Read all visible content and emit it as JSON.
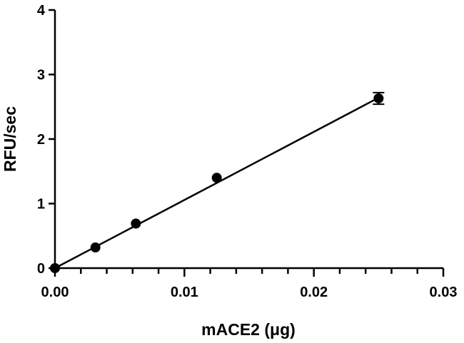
{
  "chart_data": {
    "type": "scatter",
    "title": "",
    "xlabel": "mACE2 (μg)",
    "ylabel": "RFU/sec",
    "xlim": [
      0,
      0.03
    ],
    "ylim": [
      0,
      4
    ],
    "x_ticks": [
      0.0,
      0.01,
      0.02,
      0.03
    ],
    "x_tick_labels": [
      "0.00",
      "0.01",
      "0.02",
      "0.03"
    ],
    "x_minor_ticks_per_interval": 4,
    "y_ticks": [
      0,
      1,
      2,
      3,
      4
    ],
    "y_tick_labels": [
      "0",
      "1",
      "2",
      "3",
      "4"
    ],
    "grid": false,
    "legend": "none",
    "series": [
      {
        "x": [
          0.0,
          0.003125,
          0.00625,
          0.0125,
          0.025
        ],
        "y": [
          0.0,
          0.32,
          0.69,
          1.4,
          2.63
        ],
        "y_err": [
          0,
          0,
          0,
          0,
          0.09
        ]
      }
    ],
    "fit_line": {
      "x": [
        0.0,
        0.025
      ],
      "y": [
        0.0,
        2.64
      ]
    },
    "color": "#000000"
  }
}
